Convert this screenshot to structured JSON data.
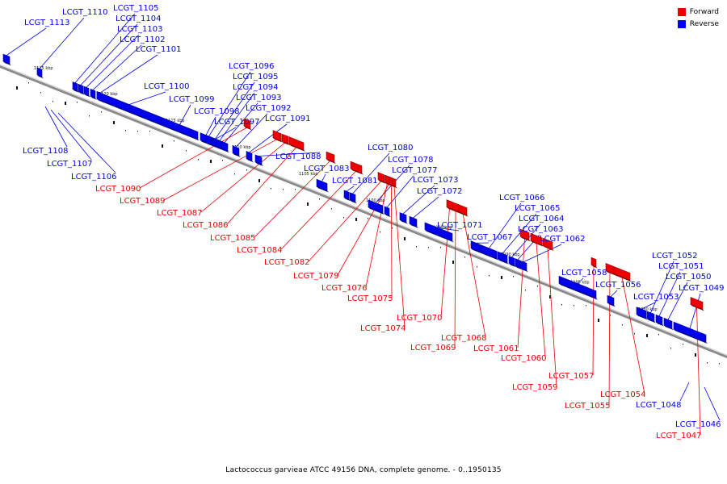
{
  "caption": "Lactococcus garvieae ATCC 49156 DNA, complete genome. - 0..1950135",
  "legend": [
    {
      "label": "Forward",
      "color": "#ee0000"
    },
    {
      "label": "Reverse",
      "color": "#0000ee"
    }
  ],
  "colors": {
    "forward": "#ee0000",
    "reverse": "#0000ee",
    "axis": "#8a8a8a"
  },
  "ticks": [
    "1125 kbp",
    "1120 kbp",
    "1115 kbp",
    "1110 kbp",
    "1105 kbp",
    "1100 kbp",
    "1095 kbp",
    "1090 kbp",
    "1085 kbp",
    "1080 kbp"
  ],
  "genes": [
    {
      "id": "LCGT_1113",
      "strand": "reverse"
    },
    {
      "id": "LCGT_1110",
      "strand": "reverse"
    },
    {
      "id": "LCGT_1105",
      "strand": "reverse"
    },
    {
      "id": "LCGT_1104",
      "strand": "reverse"
    },
    {
      "id": "LCGT_1103",
      "strand": "reverse"
    },
    {
      "id": "LCGT_1102",
      "strand": "reverse"
    },
    {
      "id": "LCGT_1101",
      "strand": "reverse"
    },
    {
      "id": "LCGT_1100",
      "strand": "reverse"
    },
    {
      "id": "LCGT_1099",
      "strand": "reverse"
    },
    {
      "id": "LCGT_1098",
      "strand": "reverse"
    },
    {
      "id": "LCGT_1097",
      "strand": "reverse"
    },
    {
      "id": "LCGT_1096",
      "strand": "reverse"
    },
    {
      "id": "LCGT_1095",
      "strand": "reverse"
    },
    {
      "id": "LCGT_1094",
      "strand": "reverse"
    },
    {
      "id": "LCGT_1093",
      "strand": "reverse"
    },
    {
      "id": "LCGT_1092",
      "strand": "reverse"
    },
    {
      "id": "LCGT_1091",
      "strand": "reverse"
    },
    {
      "id": "LCGT_1088",
      "strand": "reverse"
    },
    {
      "id": "LCGT_1083",
      "strand": "reverse"
    },
    {
      "id": "LCGT_1081",
      "strand": "reverse"
    },
    {
      "id": "LCGT_1080",
      "strand": "reverse"
    },
    {
      "id": "LCGT_1078",
      "strand": "reverse"
    },
    {
      "id": "LCGT_1077",
      "strand": "reverse"
    },
    {
      "id": "LCGT_1073",
      "strand": "reverse"
    },
    {
      "id": "LCGT_1072",
      "strand": "reverse"
    },
    {
      "id": "LCGT_1071",
      "strand": "reverse"
    },
    {
      "id": "LCGT_1067",
      "strand": "reverse"
    },
    {
      "id": "LCGT_1066",
      "strand": "reverse"
    },
    {
      "id": "LCGT_1065",
      "strand": "reverse"
    },
    {
      "id": "LCGT_1064",
      "strand": "reverse"
    },
    {
      "id": "LCGT_1063",
      "strand": "reverse"
    },
    {
      "id": "LCGT_1062",
      "strand": "reverse"
    },
    {
      "id": "LCGT_1058",
      "strand": "reverse"
    },
    {
      "id": "LCGT_1056",
      "strand": "reverse"
    },
    {
      "id": "LCGT_1053",
      "strand": "reverse"
    },
    {
      "id": "LCGT_1052",
      "strand": "reverse"
    },
    {
      "id": "LCGT_1051",
      "strand": "reverse"
    },
    {
      "id": "LCGT_1050",
      "strand": "reverse"
    },
    {
      "id": "LCGT_1049",
      "strand": "reverse"
    },
    {
      "id": "LCGT_1108",
      "strand": "reverse"
    },
    {
      "id": "LCGT_1107",
      "strand": "reverse"
    },
    {
      "id": "LCGT_1106",
      "strand": "reverse"
    },
    {
      "id": "LCGT_1048",
      "strand": "reverse"
    },
    {
      "id": "LCGT_1046",
      "strand": "reverse"
    },
    {
      "id": "LCGT_1090",
      "strand": "forward"
    },
    {
      "id": "LCGT_1089",
      "strand": "forward"
    },
    {
      "id": "LCGT_1087",
      "strand": "forward"
    },
    {
      "id": "LCGT_1086",
      "strand": "forward"
    },
    {
      "id": "LCGT_1085",
      "strand": "forward"
    },
    {
      "id": "LCGT_1084",
      "strand": "forward"
    },
    {
      "id": "LCGT_1082",
      "strand": "forward"
    },
    {
      "id": "LCGT_1079",
      "strand": "forward"
    },
    {
      "id": "LCGT_1076",
      "strand": "forward"
    },
    {
      "id": "LCGT_1075",
      "strand": "forward"
    },
    {
      "id": "LCGT_1074",
      "strand": "forward"
    },
    {
      "id": "LCGT_1070",
      "strand": "forward"
    },
    {
      "id": "LCGT_1069",
      "strand": "forward"
    },
    {
      "id": "LCGT_1068",
      "strand": "forward"
    },
    {
      "id": "LCGT_1061",
      "strand": "forward"
    },
    {
      "id": "LCGT_1060",
      "strand": "forward"
    },
    {
      "id": "LCGT_1059",
      "strand": "forward"
    },
    {
      "id": "LCGT_1057",
      "strand": "forward"
    },
    {
      "id": "LCGT_1055",
      "strand": "forward"
    },
    {
      "id": "LCGT_1054",
      "strand": "forward"
    },
    {
      "id": "LCGT_1047",
      "strand": "forward"
    }
  ]
}
